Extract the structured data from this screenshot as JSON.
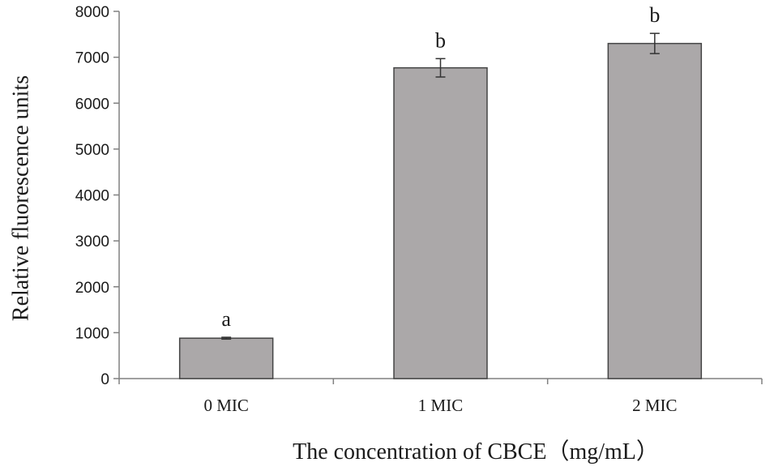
{
  "chart_data": {
    "type": "bar",
    "categories": [
      "0 MIC",
      "1 MIC",
      "2 MIC"
    ],
    "values": [
      880,
      6770,
      7300
    ],
    "errors": [
      20,
      200,
      220
    ],
    "significance_labels": [
      "a",
      "b",
      "b"
    ],
    "xlabel": "The concentration of CBCE（mg/mL）",
    "ylabel": "Relative fluorescence units",
    "ylim": [
      0,
      8000
    ],
    "yticks": [
      "0",
      "1000",
      "2000",
      "3000",
      "4000",
      "5000",
      "6000",
      "7000",
      "8000"
    ],
    "grid": false,
    "bar_color": "#aba8a9",
    "bar_edge_color": "#444444",
    "axis_color": "#808080"
  }
}
